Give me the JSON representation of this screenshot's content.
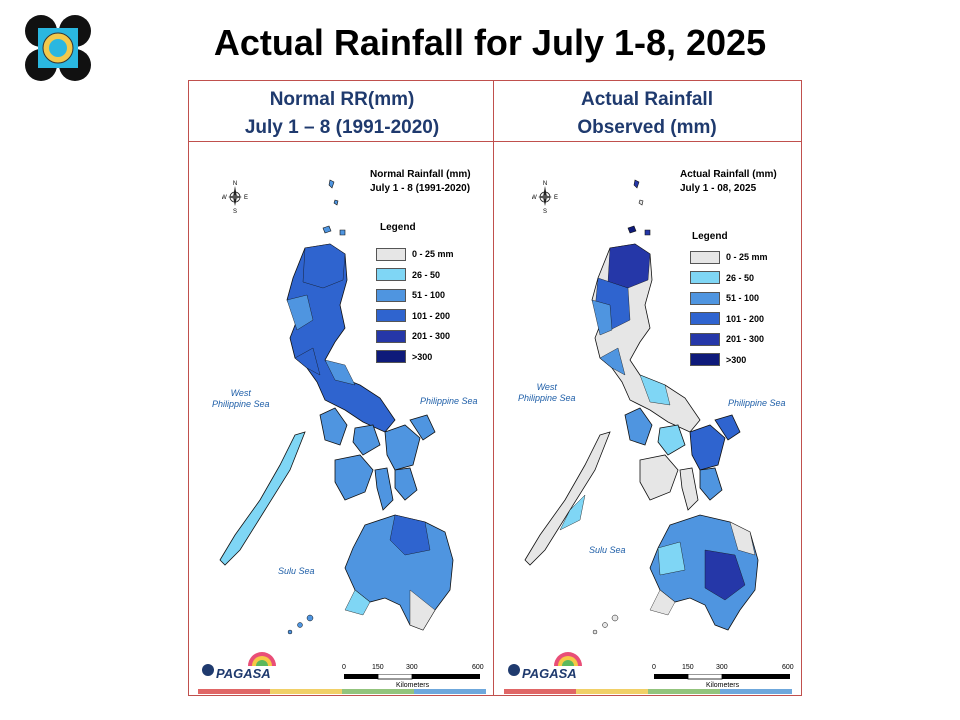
{
  "slide": {
    "title": "Actual Rainfall for July 1-8, 2025"
  },
  "left_panel": {
    "header_line1": "Normal RR(mm)",
    "header_line2": "July 1 – 8 (1991-2020)",
    "map_title_line1": "Normal Rainfall (mm)",
    "map_title_line2": "July 1 - 8 (1991-2020)",
    "legend_title": "Legend",
    "legend": [
      {
        "label": "0 - 25 mm",
        "color": "#e6e6e6"
      },
      {
        "label": "26 - 50",
        "color": "#7fd6f5"
      },
      {
        "label": "51 - 100",
        "color": "#4f95e0"
      },
      {
        "label": "101 - 200",
        "color": "#2f64cf"
      },
      {
        "label": "201 - 300",
        "color": "#2537a8"
      },
      {
        "label": ">300",
        "color": "#0e1a7a"
      }
    ],
    "sea_west_line1": "West",
    "sea_west_line2": "Philippine Sea",
    "sea_east": "Philippine Sea",
    "sea_south": "Sulu Sea",
    "scale_ticks": [
      "0",
      "150",
      "300",
      "600"
    ],
    "scale_unit": "Kilometers"
  },
  "right_panel": {
    "header_line1": "Actual Rainfall",
    "header_line2": "Observed (mm)",
    "map_title_line1": "Actual Rainfall (mm)",
    "map_title_line2": "July 1 - 08, 2025",
    "legend_title": "Legend",
    "legend": [
      {
        "label": "0 - 25 mm",
        "color": "#e6e6e6"
      },
      {
        "label": "26 - 50",
        "color": "#7fd6f5"
      },
      {
        "label": "51 - 100",
        "color": "#4f95e0"
      },
      {
        "label": "101 - 200",
        "color": "#2f64cf"
      },
      {
        "label": "201 - 300",
        "color": "#2537a8"
      },
      {
        "label": ">300",
        "color": "#0e1a7a"
      }
    ],
    "sea_west_line1": "West",
    "sea_west_line2": "Philippine Sea",
    "sea_east": "Philippine Sea",
    "sea_south": "Sulu Sea",
    "scale_ticks": [
      "0",
      "150",
      "300",
      "600"
    ],
    "scale_unit": "Kilometers"
  },
  "branding": {
    "pagasa_label": "PAGASA"
  },
  "colors": {
    "frame": "#c0504d",
    "header_text": "#1f3a6e",
    "footer_stripes": [
      "#e06666",
      "#f1d067",
      "#93c47d",
      "#6fa8dc"
    ]
  }
}
